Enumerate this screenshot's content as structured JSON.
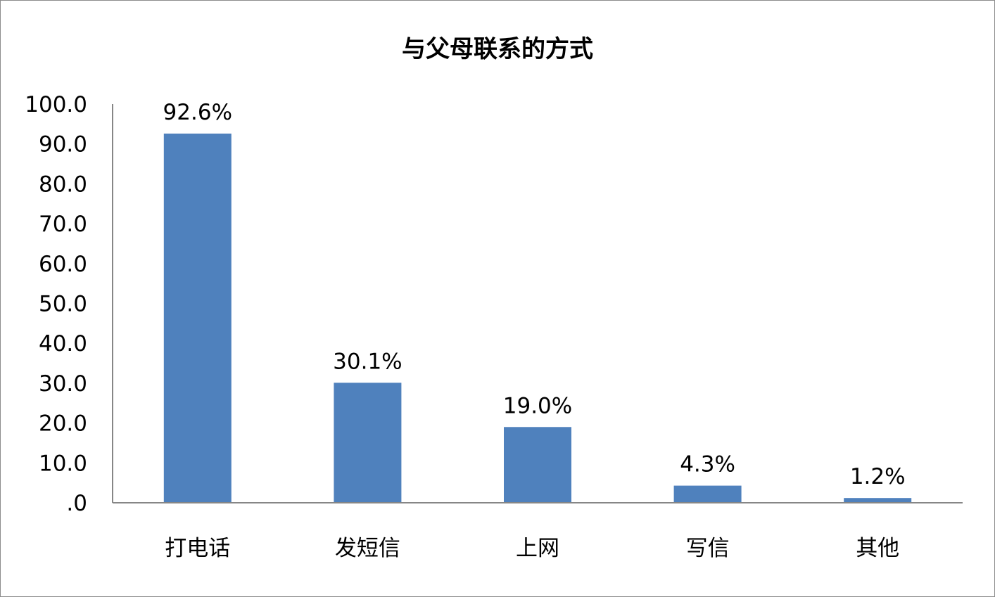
{
  "chart_data": {
    "type": "bar",
    "title": "与父母联系的方式",
    "categories": [
      "打电话",
      "发短信",
      "上网",
      "写信",
      "其他"
    ],
    "values": [
      92.6,
      30.1,
      19.0,
      4.3,
      1.2
    ],
    "data_labels": [
      "92.6%",
      "30.1%",
      "19.0%",
      "4.3%",
      "1.2%"
    ],
    "ylim": [
      0,
      100
    ],
    "y_ticks": [
      0,
      10,
      20,
      30,
      40,
      50,
      60,
      70,
      80,
      90,
      100
    ],
    "y_tick_labels": [
      ".0",
      "10.0",
      "20.0",
      "30.0",
      "40.0",
      "50.0",
      "60.0",
      "70.0",
      "80.0",
      "90.0",
      "100.0"
    ],
    "grid": false,
    "legend": "none",
    "bar_color": "#4f81bd",
    "axis_color": "#868686"
  }
}
